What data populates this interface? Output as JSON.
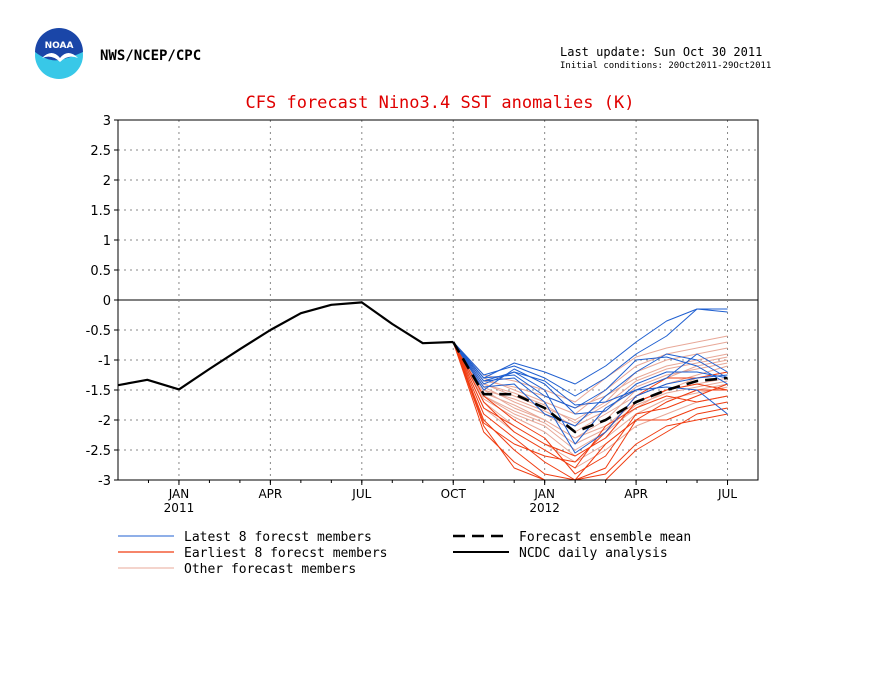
{
  "header": {
    "agency": "NWS/NCEP/CPC",
    "logo_text": "NOAA",
    "last_update": "Last update: Sun Oct 30 2011",
    "initial_conditions": "Initial conditions: 20Oct2011-29Oct2011"
  },
  "colors": {
    "title": "#e00000",
    "latest": "#1f5fd0",
    "earliest": "#f03c10",
    "other": "#e8a898",
    "mean": "#000000",
    "analysis": "#000000",
    "logo_blue": "#1a46a8",
    "logo_cyan": "#38c8e8"
  },
  "chart_data": {
    "type": "line",
    "title": "CFS forecast Nino3.4 SST anomalies (K)",
    "ylim": [
      -3,
      3
    ],
    "yticks": [
      "3",
      "2.5",
      "2",
      "1.5",
      "1",
      "0.5",
      "0",
      "-0.5",
      "-1",
      "-1.5",
      "-2",
      "-2.5",
      "-3"
    ],
    "xlim": [
      -1,
      20
    ],
    "x_tick_labels": [
      {
        "pos": 1,
        "label": "JAN",
        "sub": "2011"
      },
      {
        "pos": 4,
        "label": "APR",
        "sub": ""
      },
      {
        "pos": 7,
        "label": "JUL",
        "sub": ""
      },
      {
        "pos": 10,
        "label": "OCT",
        "sub": ""
      },
      {
        "pos": 13,
        "label": "JAN",
        "sub": "2012"
      },
      {
        "pos": 16,
        "label": "APR",
        "sub": ""
      },
      {
        "pos": 19,
        "label": "JUL",
        "sub": ""
      }
    ],
    "grid": "dotted",
    "zero_line": true,
    "ncdc_daily_analysis": {
      "x": [
        -1,
        -0.04,
        1,
        2,
        3,
        4,
        5,
        6,
        7,
        8,
        9,
        10
      ],
      "y": [
        -1.42,
        -1.33,
        -1.49,
        -1.15,
        -0.82,
        -0.5,
        -0.22,
        -0.08,
        -0.04,
        -0.4,
        -0.72,
        -0.7
      ]
    },
    "ensemble_mean": {
      "x": [
        10,
        11,
        12,
        13,
        14,
        15,
        16,
        17,
        18,
        19
      ],
      "y": [
        -0.7,
        -1.57,
        -1.57,
        -1.8,
        -2.2,
        -2.0,
        -1.7,
        -1.5,
        -1.35,
        -1.3
      ]
    },
    "member_x": [
      10,
      11,
      12,
      13,
      14,
      15,
      16,
      17,
      18,
      19
    ],
    "latest_members": [
      [
        -0.7,
        -1.3,
        -1.05,
        -1.2,
        -1.4,
        -1.1,
        -0.7,
        -0.35,
        -0.15,
        -0.15
      ],
      [
        -0.7,
        -1.25,
        -1.1,
        -1.3,
        -1.6,
        -1.3,
        -0.9,
        -0.6,
        -0.15,
        -0.2
      ],
      [
        -0.7,
        -1.4,
        -1.2,
        -1.5,
        -2.4,
        -1.8,
        -1.5,
        -1.3,
        -0.9,
        -1.2
      ],
      [
        -0.7,
        -1.35,
        -1.3,
        -1.7,
        -2.55,
        -2.2,
        -1.6,
        -1.4,
        -1.3,
        -1.25
      ],
      [
        -0.7,
        -1.45,
        -1.4,
        -1.9,
        -2.1,
        -1.6,
        -1.2,
        -0.9,
        -1.0,
        -1.3
      ],
      [
        -0.7,
        -1.3,
        -1.25,
        -1.6,
        -1.8,
        -1.5,
        -1.0,
        -0.95,
        -1.1,
        -1.4
      ],
      [
        -0.7,
        -1.5,
        -1.15,
        -1.4,
        -1.9,
        -1.85,
        -1.4,
        -1.2,
        -1.2,
        -1.3
      ],
      [
        -0.7,
        -1.35,
        -1.2,
        -1.35,
        -1.75,
        -1.7,
        -1.5,
        -1.45,
        -1.5,
        -1.9
      ]
    ],
    "earliest_members": [
      [
        -0.7,
        -2.1,
        -2.8,
        -3.0,
        -3.0,
        -3.0,
        -2.5,
        -2.2,
        -1.9,
        -1.8
      ],
      [
        -0.7,
        -1.9,
        -2.3,
        -2.7,
        -3.0,
        -2.8,
        -2.0,
        -1.7,
        -1.5,
        -1.5
      ],
      [
        -0.7,
        -1.7,
        -2.2,
        -2.5,
        -2.8,
        -2.1,
        -1.8,
        -1.6,
        -1.7,
        -1.6
      ],
      [
        -0.7,
        -2.0,
        -2.5,
        -2.9,
        -3.0,
        -2.4,
        -2.0,
        -2.0,
        -1.8,
        -1.7
      ],
      [
        -0.7,
        -1.8,
        -2.1,
        -2.4,
        -2.6,
        -2.3,
        -1.7,
        -1.5,
        -1.4,
        -1.5
      ],
      [
        -0.7,
        -2.2,
        -2.7,
        -3.0,
        -3.0,
        -2.9,
        -2.4,
        -2.1,
        -2.0,
        -1.9
      ],
      [
        -0.7,
        -1.6,
        -2.0,
        -2.3,
        -2.9,
        -2.6,
        -1.9,
        -1.8,
        -1.6,
        -1.4
      ],
      [
        -0.7,
        -2.05,
        -2.4,
        -2.6,
        -2.7,
        -2.2,
        -1.6,
        -1.3,
        -1.3,
        -1.2
      ]
    ],
    "other_members": [
      [
        -0.7,
        -1.4,
        -1.6,
        -1.8,
        -2.0,
        -1.7,
        -1.2,
        -1.0,
        -0.9,
        -0.8
      ],
      [
        -0.7,
        -1.5,
        -1.8,
        -2.0,
        -2.3,
        -2.0,
        -1.5,
        -1.3,
        -1.1,
        -1.0
      ],
      [
        -0.7,
        -1.3,
        -1.5,
        -1.7,
        -1.9,
        -1.5,
        -1.1,
        -0.9,
        -0.8,
        -0.7
      ],
      [
        -0.7,
        -1.6,
        -1.9,
        -2.1,
        -2.5,
        -2.2,
        -1.8,
        -1.5,
        -1.3,
        -1.2
      ],
      [
        -0.7,
        -1.45,
        -1.7,
        -1.9,
        -2.2,
        -1.9,
        -1.6,
        -1.4,
        -1.25,
        -1.1
      ],
      [
        -0.7,
        -1.7,
        -2.1,
        -2.4,
        -2.7,
        -2.4,
        -2.0,
        -1.7,
        -1.5,
        -1.4
      ],
      [
        -0.7,
        -1.35,
        -1.45,
        -1.6,
        -1.8,
        -1.6,
        -1.3,
        -1.1,
        -1.0,
        -0.9
      ],
      [
        -0.7,
        -1.55,
        -1.75,
        -2.0,
        -2.3,
        -2.1,
        -1.7,
        -1.5,
        -1.4,
        -1.3
      ],
      [
        -0.7,
        -1.8,
        -2.2,
        -2.5,
        -2.8,
        -2.5,
        -2.1,
        -1.9,
        -1.7,
        -1.6
      ],
      [
        -0.7,
        -1.25,
        -1.35,
        -1.5,
        -1.7,
        -1.3,
        -0.95,
        -0.8,
        -0.7,
        -0.6
      ],
      [
        -0.7,
        -1.5,
        -1.65,
        -1.85,
        -2.1,
        -1.85,
        -1.45,
        -1.25,
        -1.15,
        -1.05
      ],
      [
        -0.7,
        -1.65,
        -1.95,
        -2.2,
        -2.6,
        -2.3,
        -1.9,
        -1.65,
        -1.55,
        -1.45
      ],
      [
        -0.7,
        -1.4,
        -1.55,
        -1.75,
        -2.05,
        -1.75,
        -1.35,
        -1.15,
        -1.05,
        -0.95
      ],
      [
        -0.7,
        -1.6,
        -1.85,
        -2.05,
        -2.4,
        -2.15,
        -1.75,
        -1.55,
        -1.45,
        -1.35
      ]
    ],
    "legend": [
      {
        "label": "Latest 8 forecst members",
        "style": "latest"
      },
      {
        "label": "Earliest 8 forecst members",
        "style": "earliest"
      },
      {
        "label": "Other forecast members",
        "style": "other"
      },
      {
        "label": "Forecast ensemble mean",
        "style": "mean"
      },
      {
        "label": "NCDC daily analysis",
        "style": "analysis"
      }
    ]
  }
}
